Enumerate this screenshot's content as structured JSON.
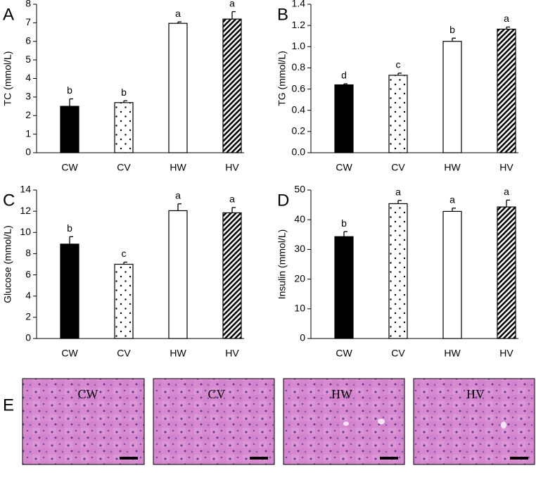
{
  "chart_data": [
    {
      "type": "bar",
      "panel": "A",
      "ylabel": "TC (mmol/L)",
      "categories": [
        "CW",
        "CV",
        "HW",
        "HV"
      ],
      "values": [
        2.5,
        2.7,
        6.97,
        7.2
      ],
      "errors": [
        0.4,
        0.1,
        0.08,
        0.4
      ],
      "letters": [
        "b",
        "b",
        "a",
        "a"
      ],
      "bar_patterns": [
        "solid",
        "dots",
        "open",
        "hatch"
      ],
      "ylim": [
        0,
        8
      ],
      "yticks": [
        0,
        1,
        2,
        3,
        4,
        5,
        6,
        7,
        8
      ]
    },
    {
      "type": "bar",
      "panel": "B",
      "ylabel": "TG (mmol/L)",
      "categories": [
        "CW",
        "CV",
        "HW",
        "HV"
      ],
      "values": [
        0.64,
        0.73,
        1.05,
        1.165
      ],
      "errors": [
        0.01,
        0.02,
        0.03,
        0.02
      ],
      "letters": [
        "d",
        "c",
        "b",
        "a"
      ],
      "bar_patterns": [
        "solid",
        "dots",
        "open",
        "hatch"
      ],
      "ylim": [
        0,
        1.4
      ],
      "yticks": [
        {
          "value": 0,
          "label": "0.0"
        },
        0.2,
        0.4,
        0.6,
        0.8,
        {
          "value": 1,
          "label": "1.0"
        },
        1.2,
        1.4
      ]
    },
    {
      "type": "bar",
      "panel": "C",
      "ylabel": "Glucose (mmol/L)",
      "categories": [
        "CW",
        "CV",
        "HW",
        "HV"
      ],
      "values": [
        8.9,
        7.0,
        12.05,
        11.85
      ],
      "errors": [
        0.7,
        0.2,
        0.65,
        0.5
      ],
      "letters": [
        "b",
        "c",
        "a",
        "a"
      ],
      "bar_patterns": [
        "solid",
        "dots",
        "open",
        "hatch"
      ],
      "ylim": [
        0,
        14
      ],
      "yticks": [
        0,
        2,
        4,
        6,
        8,
        10,
        12,
        14
      ]
    },
    {
      "type": "bar",
      "panel": "D",
      "ylabel": "Insulin (mmol/L)",
      "categories": [
        "CW",
        "CV",
        "HW",
        "HV"
      ],
      "values": [
        34.3,
        45.4,
        42.8,
        44.3
      ],
      "errors": [
        1.7,
        1.1,
        1.1,
        2.3
      ],
      "letters": [
        "b",
        "a",
        "a",
        "a"
      ],
      "bar_patterns": [
        "solid",
        "dots",
        "open",
        "hatch"
      ],
      "ylim": [
        0,
        50
      ],
      "yticks": [
        0,
        10,
        20,
        30,
        40,
        50
      ]
    }
  ],
  "histology": {
    "panel": "E",
    "labels": [
      "CW",
      "CV",
      "HW",
      "HV"
    ]
  }
}
